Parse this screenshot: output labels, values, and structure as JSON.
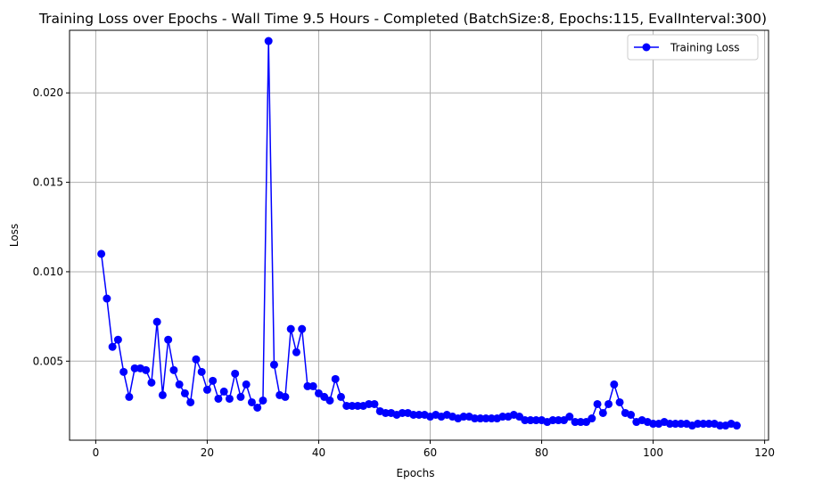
{
  "chart_data": {
    "type": "line",
    "title": "Training Loss over Epochs - Wall Time 9.5 Hours - Completed (BatchSize:8, Epochs:115, EvalInterval:300)",
    "xlabel": "Epochs",
    "ylabel": "Loss",
    "xlim": [
      -4.7,
      120.7
    ],
    "ylim": [
      0.00058,
      0.0235
    ],
    "xticks": [
      0,
      20,
      40,
      60,
      80,
      100,
      120
    ],
    "xtick_labels": [
      "0",
      "20",
      "40",
      "60",
      "80",
      "100",
      "120"
    ],
    "yticks": [
      0.005,
      0.01,
      0.015,
      0.02
    ],
    "ytick_labels": [
      "0.005",
      "0.010",
      "0.015",
      "0.020"
    ],
    "grid": true,
    "legend_position": "top-right",
    "color": "#0000ff",
    "marker": "circle",
    "series": [
      {
        "name": "Training Loss",
        "x": [
          1,
          2,
          3,
          4,
          5,
          6,
          7,
          8,
          9,
          10,
          11,
          12,
          13,
          14,
          15,
          16,
          17,
          18,
          19,
          20,
          21,
          22,
          23,
          24,
          25,
          26,
          27,
          28,
          29,
          30,
          31,
          32,
          33,
          34,
          35,
          36,
          37,
          38,
          39,
          40,
          41,
          42,
          43,
          44,
          45,
          46,
          47,
          48,
          49,
          50,
          51,
          52,
          53,
          54,
          55,
          56,
          57,
          58,
          59,
          60,
          61,
          62,
          63,
          64,
          65,
          66,
          67,
          68,
          69,
          70,
          71,
          72,
          73,
          74,
          75,
          76,
          77,
          78,
          79,
          80,
          81,
          82,
          83,
          84,
          85,
          86,
          87,
          88,
          89,
          90,
          91,
          92,
          93,
          94,
          95,
          96,
          97,
          98,
          99,
          100,
          101,
          102,
          103,
          104,
          105,
          106,
          107,
          108,
          109,
          110,
          111,
          112,
          113,
          114,
          115
        ],
        "values": [
          0.011,
          0.0085,
          0.0058,
          0.0062,
          0.0044,
          0.003,
          0.0046,
          0.0046,
          0.0045,
          0.0038,
          0.0072,
          0.0031,
          0.0062,
          0.0045,
          0.0037,
          0.0032,
          0.0027,
          0.0051,
          0.0044,
          0.0034,
          0.0039,
          0.0029,
          0.0033,
          0.0029,
          0.0043,
          0.003,
          0.0037,
          0.0027,
          0.0024,
          0.0028,
          0.0229,
          0.0048,
          0.0031,
          0.003,
          0.0068,
          0.0055,
          0.0068,
          0.0036,
          0.0036,
          0.0032,
          0.003,
          0.0028,
          0.004,
          0.003,
          0.0025,
          0.0025,
          0.0025,
          0.0025,
          0.0026,
          0.0026,
          0.0022,
          0.0021,
          0.0021,
          0.002,
          0.0021,
          0.0021,
          0.002,
          0.002,
          0.002,
          0.0019,
          0.002,
          0.0019,
          0.002,
          0.0019,
          0.0018,
          0.0019,
          0.0019,
          0.0018,
          0.0018,
          0.0018,
          0.0018,
          0.0018,
          0.0019,
          0.0019,
          0.002,
          0.0019,
          0.0017,
          0.0017,
          0.0017,
          0.0017,
          0.0016,
          0.0017,
          0.0017,
          0.0017,
          0.0019,
          0.0016,
          0.0016,
          0.0016,
          0.0018,
          0.0026,
          0.0021,
          0.0026,
          0.0037,
          0.0027,
          0.0021,
          0.002,
          0.0016,
          0.0017,
          0.0016,
          0.0015,
          0.0015,
          0.0016,
          0.0015,
          0.0015,
          0.0015,
          0.0015,
          0.0014,
          0.0015,
          0.0015,
          0.0015,
          0.0015,
          0.0014,
          0.0014,
          0.0015,
          0.0014
        ]
      }
    ]
  }
}
